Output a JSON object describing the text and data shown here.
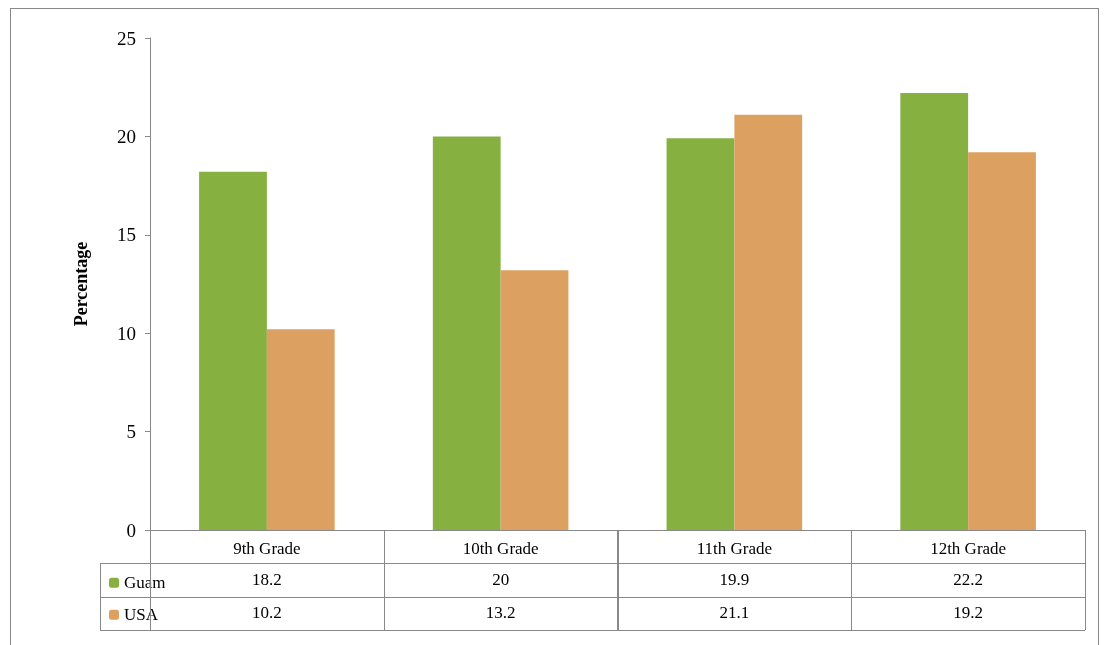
{
  "chart_data": {
    "type": "bar",
    "ylabel": "Percentage",
    "categories": [
      "9th Grade",
      "10th Grade",
      "11th Grade",
      "12th Grade"
    ],
    "series": [
      {
        "name": "Guam",
        "color": "#86b040",
        "values": [
          18.2,
          20,
          19.9,
          22.2
        ]
      },
      {
        "name": "USA",
        "color": "#dca060",
        "values": [
          10.2,
          13.2,
          21.1,
          19.2
        ]
      }
    ],
    "ylim": [
      0,
      25
    ],
    "yticks": [
      0,
      5,
      10,
      15,
      20,
      25
    ],
    "grid": false,
    "legend": "bottom left",
    "data_labels": true
  }
}
